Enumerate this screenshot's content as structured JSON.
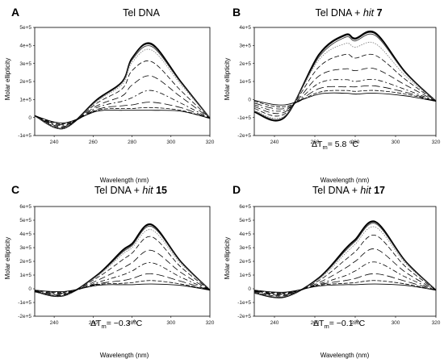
{
  "chart_data": [
    {
      "type": "line",
      "panel_letter": "A",
      "title": "Tel DNA",
      "title_italic": "",
      "title_bold": "",
      "annotation": "",
      "annotation_value": "",
      "xlabel": "Wavelength (nm)",
      "ylabel": "Molar ellipticity",
      "xlim": [
        230,
        320
      ],
      "ylim": [
        -100000,
        500000
      ],
      "xticks": [
        240,
        260,
        280,
        300,
        320
      ],
      "yticks": [
        "-1e+5",
        "0",
        "1e+5",
        "2e+5",
        "3e+5",
        "4e+5",
        "5e+5"
      ],
      "series": [
        {
          "y": [
            10000,
            -60000,
            100000,
            200000,
            330000,
            410000,
            200000,
            -5000
          ]
        },
        {
          "y": [
            10000,
            -60000,
            100000,
            200000,
            330000,
            405000,
            200000,
            -5000
          ]
        },
        {
          "y": [
            10000,
            -60000,
            95000,
            195000,
            320000,
            395000,
            195000,
            -5000
          ]
        },
        {
          "y": [
            10000,
            -60000,
            90000,
            185000,
            305000,
            375000,
            185000,
            -5000
          ]
        },
        {
          "y": [
            10000,
            -55000,
            80000,
            160000,
            260000,
            310000,
            150000,
            -5000
          ]
        },
        {
          "y": [
            10000,
            -50000,
            65000,
            120000,
            180000,
            230000,
            115000,
            -5000
          ]
        },
        {
          "y": [
            10000,
            -45000,
            55000,
            90000,
            110000,
            150000,
            80000,
            -5000
          ]
        },
        {
          "y": [
            10000,
            -40000,
            45000,
            65000,
            70000,
            85000,
            55000,
            -5000
          ]
        },
        {
          "y": [
            10000,
            -35000,
            40000,
            50000,
            50000,
            55000,
            40000,
            -5000
          ]
        },
        {
          "y": [
            10000,
            -30000,
            35000,
            40000,
            40000,
            40000,
            35000,
            -5000
          ]
        }
      ]
    },
    {
      "type": "line",
      "panel_letter": "B",
      "title": "Tel DNA + ",
      "title_italic": "hit",
      "title_bold": "7",
      "annotation": "ΔT",
      "annotation_value": "= 5.8 °C",
      "xlabel": "Wavelength (nm)",
      "ylabel": "Molar ellipticity",
      "xlim": [
        230,
        320
      ],
      "ylim": [
        -200000,
        400000
      ],
      "xticks": [
        240,
        260,
        280,
        300,
        320
      ],
      "yticks": [
        "-2e+5",
        "-1e+5",
        "0",
        "1e+5",
        "2e+5",
        "3e+5",
        "4e+5"
      ],
      "series": [
        {
          "y": [
            -70000,
            -100000,
            250000,
            360000,
            340000,
            370000,
            150000,
            -10000
          ]
        },
        {
          "y": [
            -70000,
            -100000,
            245000,
            355000,
            335000,
            365000,
            150000,
            -10000
          ]
        },
        {
          "y": [
            -65000,
            -95000,
            235000,
            345000,
            325000,
            355000,
            145000,
            -10000
          ]
        },
        {
          "y": [
            -60000,
            -90000,
            220000,
            310000,
            290000,
            310000,
            130000,
            -10000
          ]
        },
        {
          "y": [
            -50000,
            -80000,
            180000,
            250000,
            230000,
            245000,
            110000,
            -10000
          ]
        },
        {
          "y": [
            -40000,
            -70000,
            130000,
            170000,
            160000,
            170000,
            80000,
            -10000
          ]
        },
        {
          "y": [
            -30000,
            -60000,
            90000,
            110000,
            100000,
            110000,
            55000,
            -10000
          ]
        },
        {
          "y": [
            -20000,
            -50000,
            60000,
            70000,
            70000,
            75000,
            40000,
            -10000
          ]
        },
        {
          "y": [
            -10000,
            -40000,
            40000,
            50000,
            45000,
            50000,
            30000,
            -10000
          ]
        },
        {
          "y": [
            -5000,
            -30000,
            30000,
            35000,
            30000,
            35000,
            20000,
            -10000
          ]
        }
      ]
    },
    {
      "type": "line",
      "panel_letter": "C",
      "title": "Tel DNA + ",
      "title_italic": "hit",
      "title_bold": "15",
      "annotation": "ΔT",
      "annotation_value": "= −0.3 °C",
      "xlabel": "Wavelength (nm)",
      "ylabel": "Molar ellipticity",
      "xlim": [
        230,
        320
      ],
      "ylim": [
        -200000,
        600000
      ],
      "xticks": [
        240,
        260,
        280,
        300,
        320
      ],
      "yticks": [
        "-2e+5",
        "-1e+5",
        "0",
        "1e+5",
        "2e+5",
        "3e+5",
        "4e+5",
        "5e+5",
        "6e+5"
      ],
      "series": [
        {
          "y": [
            -20000,
            -50000,
            100000,
            280000,
            330000,
            470000,
            200000,
            -10000
          ]
        },
        {
          "y": [
            -20000,
            -50000,
            100000,
            275000,
            325000,
            465000,
            200000,
            -10000
          ]
        },
        {
          "y": [
            -20000,
            -50000,
            95000,
            265000,
            315000,
            455000,
            195000,
            -10000
          ]
        },
        {
          "y": [
            -20000,
            -48000,
            90000,
            250000,
            300000,
            430000,
            185000,
            -10000
          ]
        },
        {
          "y": [
            -20000,
            -45000,
            80000,
            210000,
            260000,
            380000,
            160000,
            -10000
          ]
        },
        {
          "y": [
            -20000,
            -40000,
            60000,
            150000,
            190000,
            280000,
            120000,
            -10000
          ]
        },
        {
          "y": [
            -15000,
            -35000,
            45000,
            100000,
            130000,
            190000,
            85000,
            -10000
          ]
        },
        {
          "y": [
            -15000,
            -30000,
            35000,
            60000,
            75000,
            110000,
            55000,
            -10000
          ]
        },
        {
          "y": [
            -10000,
            -25000,
            30000,
            40000,
            45000,
            60000,
            35000,
            -10000
          ]
        },
        {
          "y": [
            -10000,
            -20000,
            25000,
            30000,
            30000,
            35000,
            25000,
            -10000
          ]
        }
      ]
    },
    {
      "type": "line",
      "panel_letter": "D",
      "title": "Tel DNA + ",
      "title_italic": "hit",
      "title_bold": "17",
      "annotation": "ΔT",
      "annotation_value": "= −0.1 °C",
      "xlabel": "Wavelength (nm)",
      "ylabel": "Molar ellipticity",
      "xlim": [
        230,
        320
      ],
      "ylim": [
        -200000,
        600000
      ],
      "xticks": [
        240,
        260,
        280,
        300,
        320
      ],
      "yticks": [
        "-2e+5",
        "-1e+5",
        "0",
        "1e+5",
        "2e+5",
        "3e+5",
        "4e+5",
        "5e+5",
        "6e+5"
      ],
      "series": [
        {
          "y": [
            -30000,
            -60000,
            80000,
            290000,
            360000,
            490000,
            200000,
            -10000
          ]
        },
        {
          "y": [
            -30000,
            -60000,
            80000,
            285000,
            355000,
            485000,
            200000,
            -10000
          ]
        },
        {
          "y": [
            -30000,
            -58000,
            75000,
            275000,
            345000,
            475000,
            195000,
            -10000
          ]
        },
        {
          "y": [
            -28000,
            -55000,
            70000,
            255000,
            325000,
            450000,
            185000,
            -10000
          ]
        },
        {
          "y": [
            -25000,
            -50000,
            60000,
            210000,
            270000,
            390000,
            160000,
            -10000
          ]
        },
        {
          "y": [
            -20000,
            -45000,
            45000,
            150000,
            200000,
            290000,
            120000,
            -10000
          ]
        },
        {
          "y": [
            -18000,
            -40000,
            35000,
            95000,
            130000,
            195000,
            85000,
            -10000
          ]
        },
        {
          "y": [
            -15000,
            -35000,
            30000,
            60000,
            75000,
            110000,
            55000,
            -10000
          ]
        },
        {
          "y": [
            -12000,
            -30000,
            25000,
            40000,
            45000,
            60000,
            35000,
            -10000
          ]
        },
        {
          "y": [
            -10000,
            -25000,
            20000,
            30000,
            30000,
            35000,
            25000,
            -10000
          ]
        }
      ],
      "x": [
        230,
        245,
        262,
        275,
        280,
        290,
        305,
        320
      ]
    }
  ],
  "shared": {
    "x": [
      230,
      245,
      262,
      275,
      280,
      290,
      305,
      320
    ],
    "annotation_subscript": "m"
  }
}
